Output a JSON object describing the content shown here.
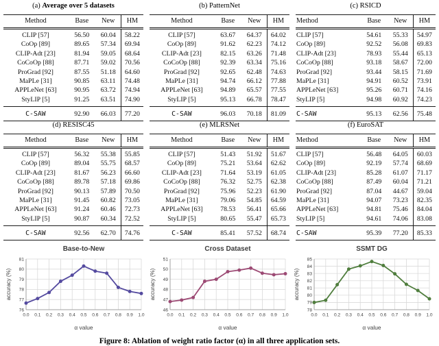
{
  "caption": "Figure 8: Ablation of weight ratio factor (α) in all three application sets.",
  "tables": [
    {
      "id": "a",
      "label": "(a)",
      "title": "Average over 5 datasets",
      "title_bold": true,
      "method_align": "center",
      "headers": [
        "Method",
        "Base",
        "New",
        "HM"
      ],
      "rows": [
        [
          "CLIP [57]",
          "56.50",
          "60.04",
          "58.22"
        ],
        [
          "CoOp [89]",
          "89.65",
          "57.34",
          "69.94"
        ],
        [
          "CLIP-Adt [23]",
          "81.94",
          "59.05",
          "68.64"
        ],
        [
          "CoCoOp [88]",
          "87.71",
          "59.02",
          "70.56"
        ],
        [
          "ProGrad [92]",
          "87.55",
          "51.18",
          "64.60"
        ],
        [
          "MaPLe [31]",
          "90.85",
          "63.11",
          "74.48"
        ],
        [
          "APPLeNet [63]",
          "90.95",
          "63.72",
          "74.94"
        ],
        [
          "StyLIP [5]",
          "91.25",
          "63.51",
          "74.90"
        ]
      ],
      "bold_map": {},
      "summary": {
        "cells": [
          "C-SAW",
          "92.90",
          "66.03",
          "77.20"
        ],
        "bold": [
          1,
          2,
          3
        ]
      }
    },
    {
      "id": "b",
      "label": "(b)",
      "title": "PatternNet",
      "title_bold": false,
      "method_align": "center",
      "headers": [
        "Method",
        "Base",
        "New",
        "HM"
      ],
      "rows": [
        [
          "CLIP [57]",
          "63.67",
          "64.37",
          "64.02"
        ],
        [
          "CoOp [89]",
          "91.62",
          "62.23",
          "74.12"
        ],
        [
          "CLIP-Adt [23]",
          "82.15",
          "63.26",
          "71.48"
        ],
        [
          "CoCoOp [88]",
          "92.39",
          "63.34",
          "75.16"
        ],
        [
          "ProGrad [92]",
          "92.65",
          "62.48",
          "74.63"
        ],
        [
          "MaPLe [31]",
          "94.74",
          "66.12",
          "77.88"
        ],
        [
          "APPLeNet [63]",
          "94.89",
          "65.57",
          "77.55"
        ],
        [
          "StyLIP [5]",
          "95.13",
          "66.78",
          "78.47"
        ]
      ],
      "bold_map": {},
      "summary": {
        "cells": [
          "C-SAW",
          "96.03",
          "70.18",
          "81.09"
        ],
        "bold": [
          1,
          2,
          3
        ]
      }
    },
    {
      "id": "c",
      "label": "(c)",
      "title": "RSICD",
      "title_bold": false,
      "method_align": "left",
      "headers": [
        "Method",
        "Base",
        "New",
        "HM"
      ],
      "rows": [
        [
          "CLIP [57]",
          "54.61",
          "55.33",
          "54.97"
        ],
        [
          "CoOp [89]",
          "92.52",
          "56.08",
          "69.83"
        ],
        [
          "CLIP-Adt [23]",
          "78.93",
          "55.44",
          "65.13"
        ],
        [
          "CoCoOp [88]",
          "93.18",
          "58.67",
          "72.00"
        ],
        [
          "ProGrad [92]",
          "93.44",
          "58.15",
          "71.69"
        ],
        [
          "MaPLe [31]",
          "94.91",
          "60.52",
          "73.91"
        ],
        [
          "APPLeNet [63]",
          "95.26",
          "60.71",
          "74.16"
        ],
        [
          "StyLIP [5]",
          "94.98",
          "60.92",
          "74.23"
        ]
      ],
      "bold_map": {
        "6": [
          1
        ]
      },
      "summary": {
        "cells": [
          "C-SAW",
          "95.13",
          "62.56",
          "75.48"
        ],
        "bold": [
          2,
          3
        ]
      }
    },
    {
      "id": "d",
      "label": "(d)",
      "title": "RESISC45",
      "title_bold": false,
      "method_align": "center",
      "headers": [
        "Method",
        "Base",
        "New",
        "HM"
      ],
      "rows": [
        [
          "CLIP [57]",
          "56.32",
          "55.38",
          "55.85"
        ],
        [
          "CoOp [89]",
          "89.04",
          "55.75",
          "68.57"
        ],
        [
          "CLIP-Adt [23]",
          "81.67",
          "56.23",
          "66.60"
        ],
        [
          "CoCoOp [88]",
          "89.78",
          "57.18",
          "69.86"
        ],
        [
          "ProGrad [92]",
          "90.13",
          "57.89",
          "70.50"
        ],
        [
          "MaPLe [31]",
          "91.45",
          "60.82",
          "73.05"
        ],
        [
          "APPLeNet [63]",
          "91.24",
          "60.46",
          "72.73"
        ],
        [
          "StyLIP [5]",
          "90.87",
          "60.34",
          "72.52"
        ]
      ],
      "bold_map": {},
      "summary": {
        "cells": [
          "C-SAW",
          "92.56",
          "62.70",
          "74.76"
        ],
        "bold": [
          1,
          2,
          3
        ]
      }
    },
    {
      "id": "e",
      "label": "(e)",
      "title": "MLRSNet",
      "title_bold": false,
      "method_align": "center",
      "headers": [
        "Method",
        "Base",
        "New",
        "HM"
      ],
      "rows": [
        [
          "CLIP [57]",
          "51.43",
          "51.92",
          "51.67"
        ],
        [
          "CoOp [89]",
          "75.21",
          "53.64",
          "62.62"
        ],
        [
          "CLIP-Adt [23]",
          "71.64",
          "53.19",
          "61.05"
        ],
        [
          "CoCoOp [88]",
          "76.32",
          "52.75",
          "62.38"
        ],
        [
          "ProGrad [92]",
          "75.96",
          "52.23",
          "61.90"
        ],
        [
          "MaPLe [31]",
          "79.06",
          "54.85",
          "64.59"
        ],
        [
          "APPLeNet [63]",
          "78.53",
          "56.41",
          "65.66"
        ],
        [
          "StyLIP [5]",
          "80.65",
          "55.47",
          "65.73"
        ]
      ],
      "bold_map": {},
      "summary": {
        "cells": [
          "C-SAW",
          "85.41",
          "57.52",
          "68.74"
        ],
        "bold": [
          1,
          2,
          3
        ]
      }
    },
    {
      "id": "f",
      "label": "(f)",
      "title": "EuroSAT",
      "title_bold": false,
      "method_align": "left",
      "headers": [
        "Method",
        "Base",
        "New",
        "HM"
      ],
      "rows": [
        [
          "CLIP [57]",
          "56.48",
          "64.05",
          "60.03"
        ],
        [
          "CoOp [89]",
          "92.19",
          "57.74",
          "68.69"
        ],
        [
          "CLIP-Adt [23]",
          "85.28",
          "61.07",
          "71.17"
        ],
        [
          "CoCoOp [88]",
          "87.49",
          "60.04",
          "71.21"
        ],
        [
          "ProGrad [92]",
          "87.04",
          "44.67",
          "59.04"
        ],
        [
          "MaPLe [31]",
          "94.07",
          "73.23",
          "82.35"
        ],
        [
          "APPLeNet [63]",
          "94.81",
          "75.46",
          "84.04"
        ],
        [
          "StyLIP [5]",
          "94.61",
          "74.06",
          "83.08"
        ]
      ],
      "bold_map": {},
      "summary": {
        "cells": [
          "C-SAW",
          "95.39",
          "77.20",
          "85.33"
        ],
        "bold": [
          1,
          2,
          3
        ]
      }
    }
  ],
  "chart_data": [
    {
      "type": "line",
      "title": "Base-to-New",
      "xlabel": "α value",
      "ylabel": "accuracy (%)",
      "x": [
        0.0,
        0.1,
        0.2,
        0.3,
        0.4,
        0.5,
        0.6,
        0.7,
        0.8,
        0.9,
        1.0
      ],
      "x_tick_labels": [
        "0.0",
        "0.1",
        "0.2",
        "0.3",
        "0.4",
        "0.5",
        "0.6",
        "0.7",
        "0.8",
        "0.9",
        "1.0"
      ],
      "values": [
        76.65,
        77.1,
        77.7,
        78.8,
        79.4,
        80.3,
        79.8,
        79.6,
        78.2,
        77.8,
        77.6
      ],
      "ylim": [
        76,
        81
      ],
      "y_tick_step": 1,
      "grid": true,
      "color": "#544a9f"
    },
    {
      "type": "line",
      "title": "Cross Dataset",
      "xlabel": "α value",
      "ylabel": "accuracy (%)",
      "x": [
        0.0,
        0.1,
        0.2,
        0.3,
        0.4,
        0.5,
        0.6,
        0.7,
        0.8,
        0.9,
        1.0
      ],
      "x_tick_labels": [
        "0.0",
        "0.1",
        "0.2",
        "0.3",
        "0.4",
        "0.5",
        "0.6",
        "0.7",
        "0.8",
        "0.9",
        "1.0"
      ],
      "values": [
        46.8,
        46.95,
        47.2,
        48.8,
        49.0,
        49.75,
        49.9,
        50.1,
        49.6,
        49.45,
        49.55
      ],
      "ylim": [
        46,
        51
      ],
      "y_tick_step": 1,
      "grid": true,
      "color": "#9c4a74"
    },
    {
      "type": "line",
      "title": "SSMT DG",
      "xlabel": "α value",
      "ylabel": "accuracy (%)",
      "x": [
        0.0,
        0.1,
        0.2,
        0.3,
        0.4,
        0.5,
        0.6,
        0.7,
        0.8,
        0.9,
        1.0
      ],
      "x_tick_labels": [
        "0.0",
        "0.1",
        "0.2",
        "0.3",
        "0.4",
        "0.5",
        "0.6",
        "0.7",
        "0.8",
        "0.9",
        "1.0"
      ],
      "values": [
        79.0,
        79.3,
        81.45,
        83.6,
        84.05,
        84.65,
        84.1,
        82.95,
        81.5,
        80.65,
        79.5
      ],
      "ylim": [
        78,
        85
      ],
      "y_tick_step": 1,
      "grid": true,
      "color": "#4f7d3d"
    }
  ],
  "chart_colors": {
    "grid": "#d9d9d9",
    "axis": "#a0a0a0",
    "tick_text": "#3f3f3f"
  }
}
